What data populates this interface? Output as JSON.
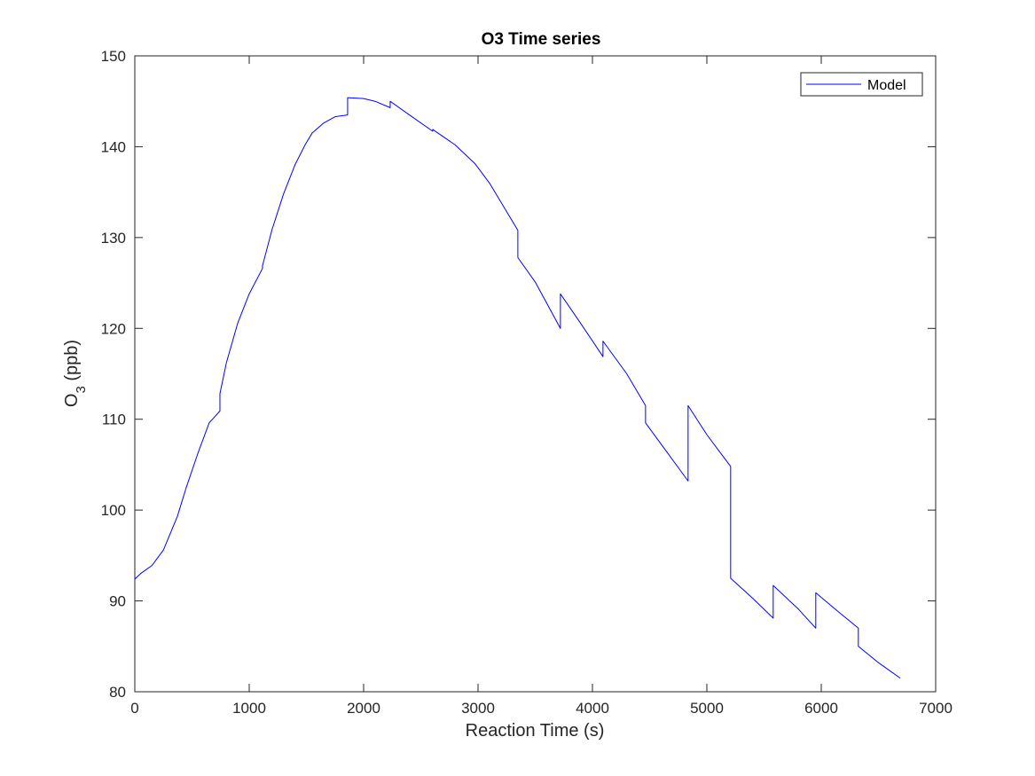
{
  "chart_data": {
    "type": "line",
    "title": "O3 Time series",
    "xlabel": "Reaction Time (s)",
    "ylabel_main": "O",
    "ylabel_sub": "3",
    "ylabel_suffix": " (ppb)",
    "xlim": [
      0,
      7000
    ],
    "ylim": [
      80,
      150
    ],
    "xticks": [
      0,
      1000,
      2000,
      3000,
      4000,
      5000,
      6000,
      7000
    ],
    "yticks": [
      80,
      90,
      100,
      110,
      120,
      130,
      140,
      150
    ],
    "grid": false,
    "legend_position": "top-right",
    "series": [
      {
        "name": "Model",
        "color": "#0000ff",
        "x": [
          0,
          50,
          150,
          250,
          372,
          450,
          550,
          650,
          744,
          744,
          800,
          900,
          1000,
          1116,
          1116,
          1200,
          1300,
          1400,
          1488,
          1550,
          1650,
          1750,
          1860,
          1860,
          2000,
          2100,
          2232,
          2232,
          2400,
          2604,
          2604,
          2800,
          2976,
          2976,
          3100,
          3348,
          3348,
          3500,
          3720,
          3720,
          3900,
          4092,
          4092,
          4300,
          4464,
          4464,
          4650,
          4836,
          4836,
          5000,
          5208,
          5208,
          5400,
          5580,
          5580,
          5800,
          5952,
          5952,
          6150,
          6324,
          6324,
          6500,
          6690
        ],
        "y": [
          92.4,
          93.0,
          93.9,
          95.6,
          99.3,
          102.5,
          106.2,
          109.6,
          110.9,
          112.8,
          116.2,
          120.6,
          123.8,
          126.6,
          126.9,
          130.9,
          134.8,
          138.0,
          140.2,
          141.5,
          142.6,
          143.3,
          143.5,
          145.4,
          145.3,
          145.0,
          144.3,
          145.0,
          143.5,
          141.7,
          141.9,
          140.2,
          138.1,
          138.1,
          136.0,
          130.8,
          127.8,
          125.1,
          120.0,
          123.8,
          120.5,
          116.9,
          118.6,
          115.0,
          111.5,
          109.6,
          106.4,
          103.2,
          111.5,
          108.3,
          104.8,
          92.5,
          90.3,
          88.1,
          91.7,
          89.1,
          87.0,
          90.9,
          88.8,
          87.0,
          85.0,
          83.2,
          81.5
        ]
      }
    ]
  }
}
